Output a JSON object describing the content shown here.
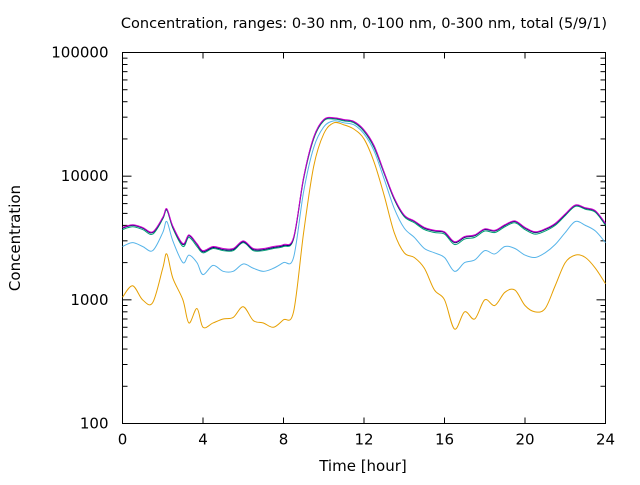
{
  "chart_data": {
    "type": "line",
    "title": "Concentration, ranges: 0-30 nm, 0-100 nm, 0-300 nm, total (5/9/1)",
    "xlabel": "Time [hour]",
    "ylabel": "Concentration",
    "xlim": [
      0,
      24
    ],
    "ylim": [
      100,
      100000
    ],
    "yscale": "log",
    "grid": false,
    "legend": "none",
    "x_ticks": [
      0,
      4,
      8,
      12,
      16,
      20,
      24
    ],
    "x_tick_labels": [
      "0",
      "4",
      "8",
      "12",
      "16",
      "20",
      "24"
    ],
    "y_ticks": [
      100,
      1000,
      10000,
      100000
    ],
    "y_tick_labels": [
      "100",
      "1000",
      "10000",
      "100000"
    ],
    "series": [
      {
        "color": "#e69f00",
        "x": [
          0,
          0.5,
          1,
          1.5,
          2,
          2.2,
          2.5,
          3,
          3.3,
          3.7,
          4,
          4.5,
          5,
          5.5,
          6,
          6.5,
          7,
          7.5,
          8,
          8.5,
          9,
          9.5,
          10,
          10.5,
          11,
          11.5,
          12,
          12.5,
          13,
          13.5,
          14,
          14.5,
          15,
          15.5,
          16,
          16.5,
          17,
          17.5,
          18,
          18.5,
          19,
          19.5,
          20,
          20.5,
          21,
          21.5,
          22,
          22.5,
          23,
          23.5,
          24
        ],
        "y": [
          1050,
          1300,
          1000,
          950,
          1800,
          2350,
          1500,
          1000,
          650,
          850,
          600,
          650,
          700,
          720,
          880,
          680,
          650,
          600,
          690,
          800,
          3500,
          12000,
          22000,
          27000,
          26000,
          24000,
          20000,
          13000,
          7000,
          3500,
          2400,
          2200,
          1800,
          1200,
          1000,
          580,
          800,
          700,
          1000,
          900,
          1150,
          1200,
          900,
          800,
          850,
          1300,
          2000,
          2300,
          2200,
          1800,
          1350
        ]
      },
      {
        "color": "#56b4e9",
        "x": [
          0,
          0.5,
          1,
          1.5,
          2,
          2.2,
          2.5,
          3,
          3.3,
          3.7,
          4,
          4.5,
          5,
          5.5,
          6,
          6.5,
          7,
          7.5,
          8,
          8.5,
          9,
          9.5,
          10,
          10.5,
          11,
          11.5,
          12,
          12.5,
          13,
          13.5,
          14,
          14.5,
          15,
          15.5,
          16,
          16.5,
          17,
          17.5,
          18,
          18.5,
          19,
          19.5,
          20,
          20.5,
          21,
          21.5,
          22,
          22.5,
          23,
          23.5,
          24
        ],
        "y": [
          2700,
          2900,
          2700,
          2500,
          3500,
          4300,
          3000,
          2000,
          2300,
          2000,
          1600,
          1900,
          1700,
          1700,
          1950,
          1800,
          1700,
          1800,
          2000,
          2200,
          7500,
          17000,
          25000,
          28000,
          27000,
          26000,
          22000,
          16000,
          9500,
          5500,
          3800,
          3200,
          2600,
          2400,
          2200,
          1700,
          2000,
          2100,
          2500,
          2350,
          2700,
          2600,
          2300,
          2200,
          2400,
          2800,
          3500,
          4300,
          4000,
          3600,
          2900
        ]
      },
      {
        "color": "#009e73",
        "x": [
          0,
          0.5,
          1,
          1.5,
          2,
          2.2,
          2.5,
          3,
          3.3,
          3.7,
          4,
          4.5,
          5,
          5.5,
          6,
          6.5,
          7,
          7.5,
          8,
          8.5,
          9,
          9.5,
          10,
          10.5,
          11,
          11.5,
          12,
          12.5,
          13,
          13.5,
          14,
          14.5,
          15,
          15.5,
          16,
          16.5,
          17,
          17.5,
          18,
          18.5,
          19,
          19.5,
          20,
          20.5,
          21,
          21.5,
          22,
          22.5,
          23,
          23.5,
          24
        ],
        "y": [
          3700,
          3900,
          3700,
          3400,
          4500,
          5300,
          3800,
          2700,
          3200,
          2700,
          2400,
          2600,
          2500,
          2500,
          2900,
          2500,
          2500,
          2600,
          2700,
          3100,
          9500,
          20000,
          28000,
          29000,
          28000,
          27000,
          23000,
          17000,
          10500,
          6500,
          4700,
          4200,
          3700,
          3500,
          3400,
          2800,
          3100,
          3200,
          3600,
          3500,
          3900,
          4200,
          3700,
          3400,
          3600,
          4000,
          4800,
          5700,
          5400,
          5100,
          4000
        ]
      },
      {
        "color": "#0a0a6e",
        "x": [
          0,
          0.5,
          1,
          1.5,
          2,
          2.2,
          2.5,
          3,
          3.3,
          3.7,
          4,
          4.5,
          5,
          5.5,
          6,
          6.5,
          7,
          7.5,
          8,
          8.5,
          9,
          9.5,
          10,
          10.5,
          11,
          11.5,
          12,
          12.5,
          13,
          13.5,
          14,
          14.5,
          15,
          15.5,
          16,
          16.5,
          17,
          17.5,
          18,
          18.5,
          19,
          19.5,
          20,
          20.5,
          21,
          21.5,
          22,
          22.5,
          23,
          23.5,
          24
        ],
        "y": [
          3800,
          4000,
          3800,
          3500,
          4600,
          5400,
          3900,
          2800,
          3300,
          2800,
          2450,
          2650,
          2550,
          2550,
          2950,
          2550,
          2550,
          2650,
          2750,
          3150,
          9700,
          20500,
          28500,
          29500,
          28500,
          27500,
          23500,
          17500,
          10700,
          6600,
          4800,
          4300,
          3800,
          3600,
          3500,
          2900,
          3200,
          3300,
          3700,
          3600,
          4000,
          4300,
          3800,
          3500,
          3700,
          4100,
          4900,
          5800,
          5500,
          5200,
          4100
        ]
      },
      {
        "color": "#cc00cc",
        "x": [
          0,
          0.5,
          1,
          1.5,
          2,
          2.2,
          2.5,
          3,
          3.3,
          3.7,
          4,
          4.5,
          5,
          5.5,
          6,
          6.5,
          7,
          7.5,
          8,
          8.5,
          9,
          9.5,
          10,
          10.5,
          11,
          11.5,
          12,
          12.5,
          13,
          13.5,
          14,
          14.5,
          15,
          15.5,
          16,
          16.5,
          17,
          17.5,
          18,
          18.5,
          19,
          19.5,
          20,
          20.5,
          21,
          21.5,
          22,
          22.5,
          23,
          23.5,
          24
        ],
        "y": [
          3850,
          4050,
          3850,
          3550,
          4650,
          5450,
          3950,
          2850,
          3350,
          2850,
          2500,
          2700,
          2600,
          2600,
          3000,
          2600,
          2600,
          2700,
          2800,
          3200,
          9800,
          20700,
          28700,
          29700,
          28700,
          27700,
          23700,
          17700,
          10800,
          6700,
          4850,
          4350,
          3850,
          3650,
          3550,
          2950,
          3250,
          3350,
          3750,
          3650,
          4050,
          4350,
          3850,
          3550,
          3750,
          4150,
          4950,
          5850,
          5550,
          5250,
          4150
        ]
      }
    ]
  }
}
